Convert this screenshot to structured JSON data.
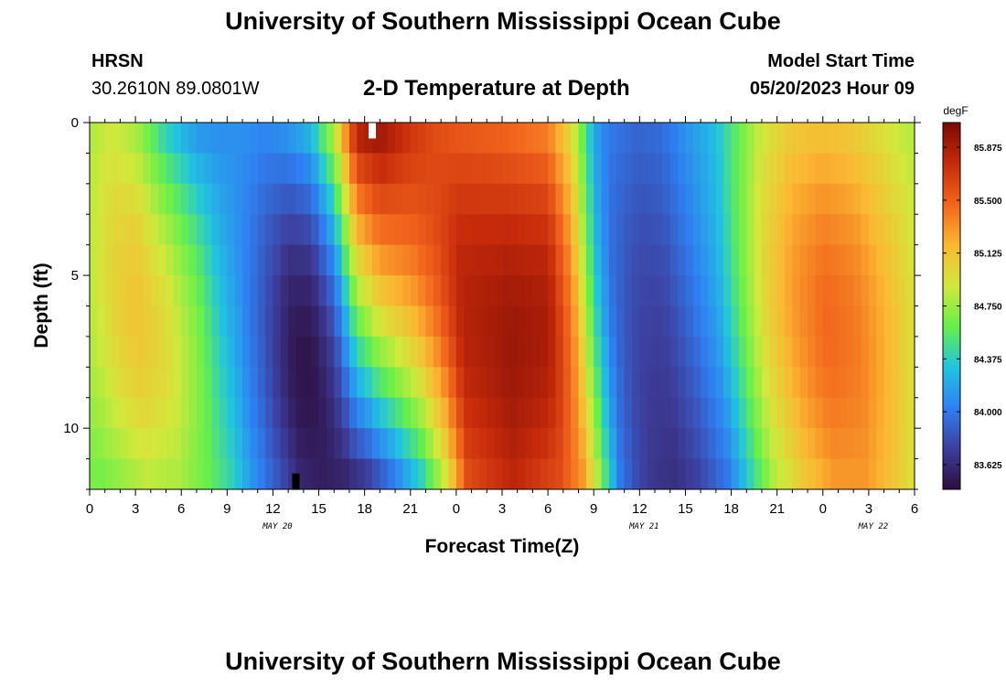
{
  "header": {
    "title": "University of Southern Mississippi Ocean Cube",
    "station": "HRSN",
    "coordinates": "30.2610N  89.0801W",
    "subtitle": "2-D Temperature at Depth",
    "model_start_label": "Model Start Time",
    "model_start_value": "05/20/2023 Hour 09"
  },
  "footer": {
    "title": "University of Southern Mississippi Ocean Cube"
  },
  "chart_data": {
    "type": "heatmap",
    "title": "2-D Temperature at Depth",
    "xlabel": "Forecast Time(Z)",
    "ylabel": "Depth (ft)",
    "x_tick_labels": [
      "0",
      "3",
      "6",
      "9",
      "12",
      "15",
      "18",
      "21",
      "0",
      "3",
      "6",
      "9",
      "12",
      "15",
      "18",
      "21",
      "0",
      "3",
      "6"
    ],
    "x_range_hours": [
      0,
      54
    ],
    "date_labels": [
      {
        "text": "MAY 20",
        "hour": 12.3
      },
      {
        "text": "MAY 21",
        "hour": 36.3
      },
      {
        "text": "MAY 22",
        "hour": 51.3
      }
    ],
    "y_ticks": [
      0,
      5,
      10
    ],
    "y_range_ft": [
      0,
      12
    ],
    "depth_levels_ft": [
      0.5,
      1.5,
      2.5,
      3.5,
      4.5,
      5.5,
      6.5,
      7.5,
      8.5,
      9.5,
      10.5,
      11.5
    ],
    "colorbar": {
      "unit": "degF",
      "min": 83.45,
      "max": 86.05,
      "tick_values": [
        83.625,
        84.0,
        84.375,
        84.75,
        85.125,
        85.5,
        85.875
      ],
      "tick_labels": [
        "83.625",
        "84.000",
        "84.375",
        "84.750",
        "85.125",
        "85.500",
        "85.875"
      ],
      "colors": [
        "#2e0d3d",
        "#3d3f9e",
        "#2f7ff2",
        "#21c4e0",
        "#66f04a",
        "#d2e83c",
        "#fbb832",
        "#f2651c",
        "#c62a0b",
        "#7a0a04"
      ]
    },
    "markers": [
      {
        "hour": 18.5,
        "depth_ft": 0.25,
        "color": "#ffffff"
      },
      {
        "hour": 13.5,
        "depth_ft": 11.75,
        "color": "#000000"
      }
    ],
    "temperature_model": {
      "hour_nodes": [
        0,
        1.5,
        3,
        5,
        7,
        8.5,
        10,
        11.5,
        13,
        14.5,
        16,
        17.5,
        19,
        21,
        22.5,
        24,
        27,
        30,
        31.5,
        32.5,
        33,
        34,
        35,
        36,
        37.5,
        39,
        41,
        42.5,
        44,
        46,
        48,
        50,
        52,
        54
      ],
      "surface_deg_f": [
        84.8,
        84.9,
        84.8,
        84.4,
        84.15,
        84.1,
        84.1,
        84.05,
        84.1,
        84.25,
        84.8,
        85.8,
        85.9,
        85.7,
        85.6,
        85.55,
        85.5,
        85.4,
        85.0,
        84.5,
        84.2,
        84.0,
        83.95,
        83.9,
        83.95,
        84.1,
        84.3,
        84.6,
        84.9,
        85.1,
        85.15,
        85.1,
        84.95,
        84.8
      ],
      "bottom_deg_f": [
        84.65,
        84.75,
        84.85,
        84.8,
        84.6,
        84.4,
        84.1,
        83.85,
        83.6,
        83.55,
        83.6,
        83.75,
        84.0,
        84.4,
        84.9,
        85.6,
        85.8,
        85.6,
        85.3,
        84.8,
        84.5,
        84.0,
        83.8,
        83.7,
        83.65,
        83.75,
        84.0,
        84.4,
        84.8,
        85.1,
        85.3,
        85.3,
        85.1,
        84.8
      ],
      "mid_depth_bulge_deg_f": [
        0.1,
        0.2,
        0.3,
        0.35,
        0.25,
        0.05,
        -0.05,
        -0.15,
        -0.3,
        -0.35,
        -0.3,
        -0.05,
        0.1,
        0.2,
        0.25,
        0.25,
        0.25,
        0.35,
        0.2,
        0.05,
        0.0,
        -0.05,
        -0.05,
        -0.05,
        -0.05,
        0.0,
        0.05,
        0.1,
        0.15,
        0.2,
        0.25,
        0.2,
        0.15,
        0.1
      ]
    }
  }
}
